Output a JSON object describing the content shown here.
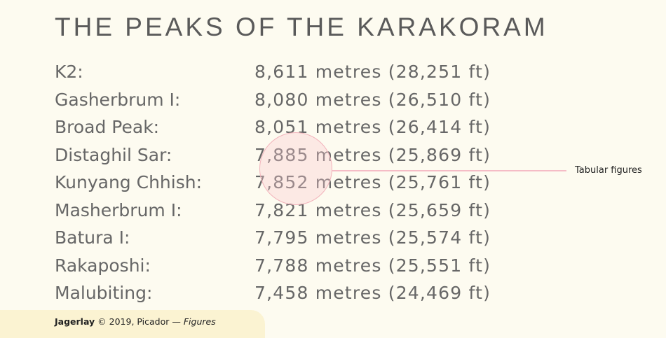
{
  "title": "THE PEAKS OF THE KARAKORAM",
  "rows": [
    {
      "name": "K2:",
      "height": "8,611 metres (28,251 ft)"
    },
    {
      "name": "Gasherbrum I:",
      "height": "8,080 metres (26,510 ft)"
    },
    {
      "name": "Broad Peak:",
      "height": "8,051 metres (26,414 ft)"
    },
    {
      "name": "Distaghil Sar:",
      "height": "7,885 metres (25,869 ft)"
    },
    {
      "name": "Kunyang Chhish:",
      "height": "7,852 metres (25,761 ft)"
    },
    {
      "name": "Masherbrum I:",
      "height": "7,821 metres (25,659 ft)"
    },
    {
      "name": "Batura I:",
      "height": "7,795 metres (25,574 ft)"
    },
    {
      "name": "Rakaposhi:",
      "height": "7,788 metres (25,551 ft)"
    },
    {
      "name": "Malubiting:",
      "height": "7,458 metres (24,469 ft)"
    }
  ],
  "annotation": "Tabular figures",
  "footer": {
    "brand": "Jagerlay",
    "credit": "© 2019, Picador —",
    "style": "Figures"
  }
}
